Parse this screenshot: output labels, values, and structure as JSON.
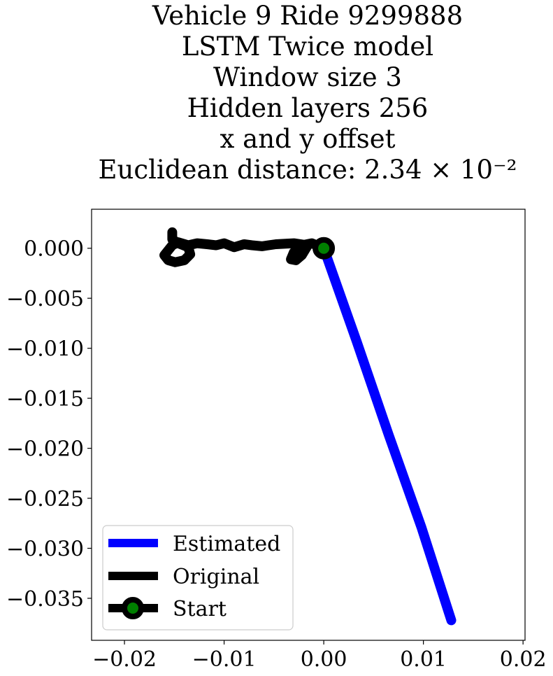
{
  "chart_data": {
    "type": "line",
    "title_lines": [
      "Vehicle 9 Ride 9299888",
      "LSTM Twice model",
      "Window size 3",
      "Hidden layers 256",
      "x and y offset",
      "Euclidean distance: 2.34 × 10⁻²"
    ],
    "xlabel": "",
    "ylabel": "",
    "xlim": [
      -0.0233,
      0.0202
    ],
    "ylim": [
      -0.0392,
      0.0039
    ],
    "x_ticks": [
      -0.02,
      -0.01,
      0.0,
      0.01,
      0.02
    ],
    "x_tick_labels": [
      "−0.02",
      "−0.01",
      "0.00",
      "0.01",
      "0.02"
    ],
    "y_ticks": [
      0.0,
      -0.005,
      -0.01,
      -0.015,
      -0.02,
      -0.025,
      -0.03,
      -0.035
    ],
    "y_tick_labels": [
      "0.000",
      "−0.005",
      "−0.010",
      "−0.015",
      "−0.020",
      "−0.025",
      "−0.030",
      "−0.035"
    ],
    "grid": false,
    "legend_position": "lower-left",
    "series": [
      {
        "name": "Estimated",
        "color": "#0000ff",
        "x": [
          0.0,
          0.0033,
          0.0065,
          0.0098,
          0.0128
        ],
        "y": [
          0.0,
          -0.0093,
          -0.0186,
          -0.0279,
          -0.0372
        ]
      },
      {
        "name": "Original",
        "color": "#000000",
        "x": [
          0.0,
          -0.0012,
          -0.0022,
          -0.003,
          -0.0033,
          -0.0028,
          -0.0022,
          -0.0016,
          -0.003,
          -0.0048,
          -0.0062,
          -0.0072,
          -0.008,
          -0.009,
          -0.01,
          -0.0108,
          -0.0117,
          -0.0127,
          -0.0136,
          -0.0146,
          -0.0152,
          -0.0156,
          -0.016,
          -0.0156,
          -0.0149,
          -0.014,
          -0.0134,
          -0.0136,
          -0.0146,
          -0.0152,
          -0.0152
        ],
        "y": [
          0.0,
          0.0005,
          0.0003,
          -0.0004,
          -0.0011,
          -0.0012,
          -0.0007,
          0.0003,
          0.0005,
          0.0004,
          0.0002,
          0.0003,
          0.0004,
          0.0001,
          0.0005,
          0.0003,
          0.0004,
          0.0005,
          0.0003,
          0.0006,
          0.0003,
          -0.0002,
          -0.0007,
          -0.0012,
          -0.0014,
          -0.0012,
          -0.0006,
          0.0001,
          0.0005,
          0.0009,
          0.0016
        ]
      },
      {
        "name": "Start",
        "color": "#000000",
        "marker_face": "#008000",
        "x": [
          0.0
        ],
        "y": [
          0.0
        ]
      }
    ]
  }
}
